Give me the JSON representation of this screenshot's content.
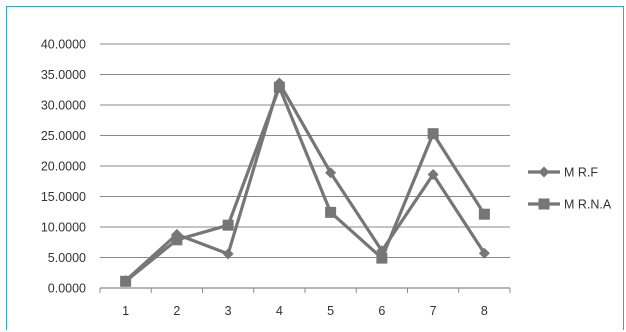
{
  "chart_data": {
    "type": "line",
    "x": [
      "1",
      "2",
      "3",
      "4",
      "5",
      "6",
      "7",
      "8"
    ],
    "ylim": [
      0,
      40
    ],
    "yticks": [
      "0.0000",
      "5.0000",
      "10.0000",
      "15.0000",
      "20.0000",
      "25.0000",
      "30.0000",
      "35.0000",
      "40.0000"
    ],
    "ytick_values": [
      0,
      5,
      10,
      15,
      20,
      25,
      30,
      35,
      40
    ],
    "grid": true,
    "legend": "right",
    "series": [
      {
        "name": "M R.F",
        "marker": "diamond",
        "color": "#767676",
        "values": [
          1.2,
          8.8,
          5.6,
          33.6,
          18.9,
          6.1,
          18.6,
          5.7
        ]
      },
      {
        "name": "M R.N.A",
        "marker": "square",
        "color": "#767676",
        "values": [
          1.1,
          7.9,
          10.3,
          32.9,
          12.4,
          4.9,
          25.3,
          12.1
        ]
      }
    ]
  }
}
